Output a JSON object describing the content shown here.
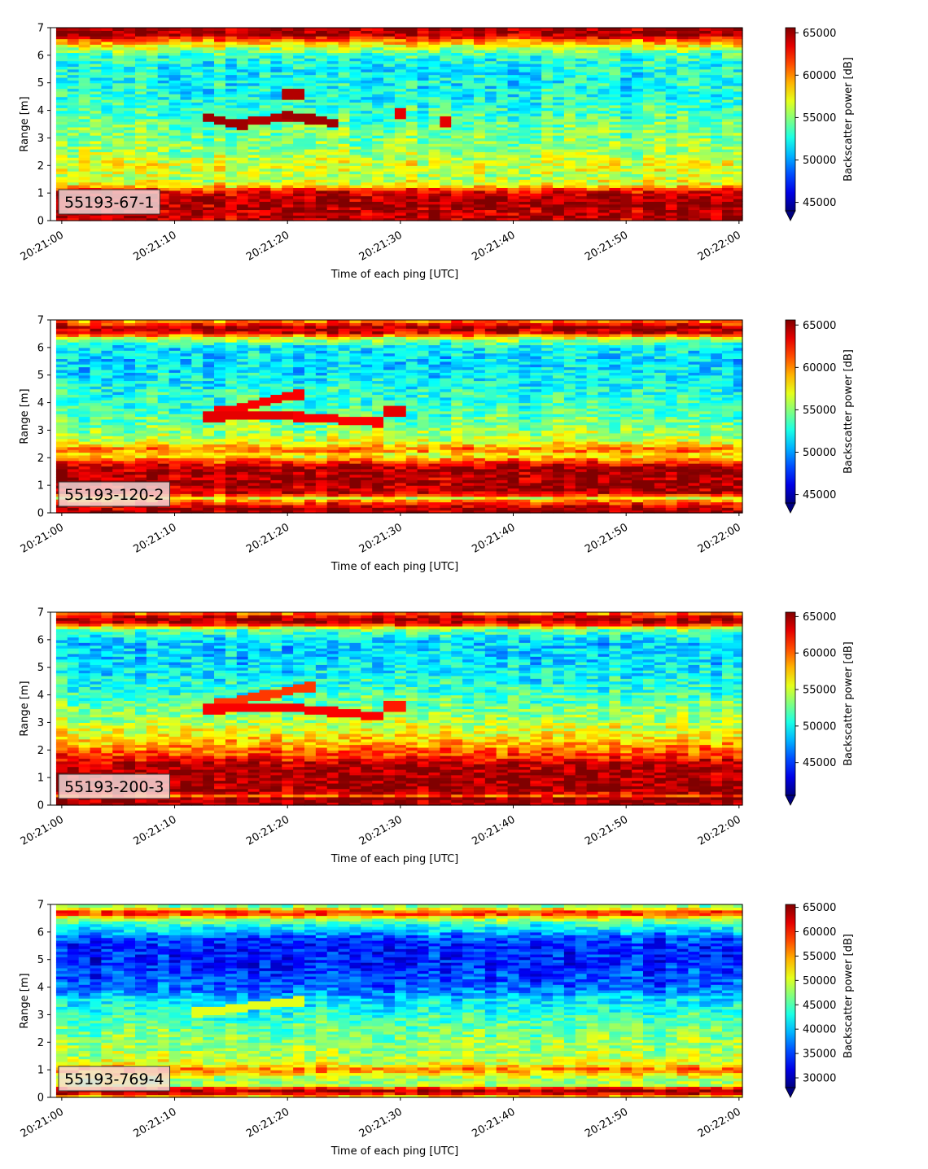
{
  "figure": {
    "colormap": "jet",
    "colorbar_extend": "min"
  },
  "chart_data": [
    {
      "type": "heatmap",
      "label": "55193-67-1",
      "xlabel": "Time of each ping [UTC]",
      "ylabel": "Range [m]",
      "colorbar_label": "Backscatter power [dB]",
      "x_ticks": [
        "20:21:00",
        "20:21:10",
        "20:21:20",
        "20:21:30",
        "20:21:40",
        "20:21:50",
        "20:22:00"
      ],
      "x_tick_seconds": [
        0,
        10,
        20,
        30,
        40,
        50,
        60
      ],
      "xlim_seconds": [
        -1,
        60.3
      ],
      "y_ticks": [
        "0",
        "1",
        "2",
        "3",
        "4",
        "5",
        "6",
        "7"
      ],
      "ylim": [
        0,
        7
      ],
      "clim": [
        44000,
        65600
      ],
      "cbar_ticks": [
        "45000",
        "50000",
        "55000",
        "60000",
        "65000"
      ],
      "cbar_tick_values": [
        45000,
        50000,
        55000,
        60000,
        65000
      ],
      "profile": {
        "depth": [
          0.0,
          0.15,
          0.3,
          0.6,
          0.9,
          1.1,
          1.3,
          1.6,
          2.0,
          2.3,
          2.6,
          3.0,
          3.5,
          4.0,
          4.5,
          5.0,
          5.5,
          6.0,
          6.3,
          6.6,
          6.75,
          7.0
        ],
        "level": [
          0.93,
          0.95,
          0.94,
          0.97,
          0.95,
          0.88,
          0.62,
          0.55,
          0.6,
          0.55,
          0.52,
          0.5,
          0.47,
          0.43,
          0.4,
          0.38,
          0.38,
          0.42,
          0.58,
          0.8,
          0.96,
          0.97
        ]
      },
      "noise": 0.1,
      "fish": [
        {
          "t0": 12.5,
          "t1": 16,
          "r0": 3.8,
          "r1": 3.5,
          "level": 0.97
        },
        {
          "t0": 16,
          "t1": 20,
          "r0": 3.55,
          "r1": 3.8,
          "level": 0.95
        },
        {
          "t0": 20,
          "t1": 24,
          "r0": 3.85,
          "r1": 3.55,
          "level": 0.97
        },
        {
          "t0": 19.5,
          "t1": 21.5,
          "r0": 4.6,
          "r1": 4.6,
          "level": 0.95
        },
        {
          "t0": 29.5,
          "t1": 30.5,
          "r0": 3.9,
          "r1": 3.9,
          "level": 0.9
        },
        {
          "t0": 33.5,
          "t1": 34.5,
          "r0": 3.6,
          "r1": 3.6,
          "level": 0.9
        }
      ]
    },
    {
      "type": "heatmap",
      "label": "55193-120-2",
      "xlabel": "Time of each ping [UTC]",
      "ylabel": "Range [m]",
      "colorbar_label": "Backscatter power [dB]",
      "x_ticks": [
        "20:21:00",
        "20:21:10",
        "20:21:20",
        "20:21:30",
        "20:21:40",
        "20:21:50",
        "20:22:00"
      ],
      "x_tick_seconds": [
        0,
        10,
        20,
        30,
        40,
        50,
        60
      ],
      "xlim_seconds": [
        -1,
        60.3
      ],
      "y_ticks": [
        "0",
        "1",
        "2",
        "3",
        "4",
        "5",
        "6",
        "7"
      ],
      "ylim": [
        0,
        7
      ],
      "clim": [
        44000,
        65600
      ],
      "cbar_ticks": [
        "45000",
        "50000",
        "55000",
        "60000",
        "65000"
      ],
      "cbar_tick_values": [
        45000,
        50000,
        55000,
        60000,
        65000
      ],
      "profile": {
        "depth": [
          0.0,
          0.2,
          0.4,
          0.55,
          0.7,
          1.0,
          1.3,
          1.6,
          1.9,
          2.1,
          2.3,
          2.6,
          3.0,
          3.5,
          4.0,
          4.5,
          5.0,
          5.5,
          6.0,
          6.3,
          6.55,
          6.75,
          7.0
        ],
        "level": [
          0.97,
          0.95,
          0.8,
          0.6,
          0.93,
          0.97,
          0.95,
          0.98,
          0.8,
          0.6,
          0.78,
          0.58,
          0.52,
          0.46,
          0.42,
          0.4,
          0.36,
          0.34,
          0.36,
          0.52,
          0.9,
          0.97,
          0.7
        ]
      },
      "noise": 0.1,
      "fish": [
        {
          "t0": 12.5,
          "t1": 20,
          "r0": 3.5,
          "r1": 3.55,
          "level": 0.9
        },
        {
          "t0": 14,
          "t1": 21,
          "r0": 3.7,
          "r1": 4.3,
          "level": 0.88
        },
        {
          "t0": 21,
          "t1": 28,
          "r0": 3.5,
          "r1": 3.3,
          "level": 0.88
        },
        {
          "t0": 29,
          "t1": 30.5,
          "r0": 3.7,
          "r1": 3.7,
          "level": 0.9
        }
      ]
    },
    {
      "type": "heatmap",
      "label": "55193-200-3",
      "xlabel": "Time of each ping [UTC]",
      "ylabel": "Range [m]",
      "colorbar_label": "Backscatter power [dB]",
      "x_ticks": [
        "20:21:00",
        "20:21:10",
        "20:21:20",
        "20:21:30",
        "20:21:40",
        "20:21:50",
        "20:22:00"
      ],
      "x_tick_seconds": [
        0,
        10,
        20,
        30,
        40,
        50,
        60
      ],
      "xlim_seconds": [
        -1,
        60.3
      ],
      "y_ticks": [
        "0",
        "1",
        "2",
        "3",
        "4",
        "5",
        "6",
        "7"
      ],
      "ylim": [
        0,
        7
      ],
      "clim": [
        40500,
        65600
      ],
      "cbar_ticks": [
        "45000",
        "50000",
        "55000",
        "60000",
        "65000"
      ],
      "cbar_tick_values": [
        45000,
        50000,
        55000,
        60000,
        65000
      ],
      "profile": {
        "depth": [
          0.0,
          0.25,
          0.35,
          0.5,
          0.8,
          1.2,
          1.5,
          1.7,
          2.0,
          2.3,
          2.6,
          3.0,
          3.5,
          4.0,
          4.5,
          5.0,
          5.5,
          6.0,
          6.4,
          6.6,
          6.8,
          7.0
        ],
        "level": [
          0.97,
          0.97,
          0.8,
          0.97,
          0.98,
          0.97,
          0.96,
          0.85,
          0.78,
          0.7,
          0.62,
          0.56,
          0.5,
          0.44,
          0.4,
          0.36,
          0.34,
          0.34,
          0.5,
          0.92,
          0.97,
          0.72
        ]
      },
      "noise": 0.1,
      "fish": [
        {
          "t0": 12.5,
          "t1": 20,
          "r0": 3.5,
          "r1": 3.55,
          "level": 0.88
        },
        {
          "t0": 14,
          "t1": 22,
          "r0": 3.7,
          "r1": 4.3,
          "level": 0.82
        },
        {
          "t0": 20,
          "t1": 28,
          "r0": 3.55,
          "r1": 3.25,
          "level": 0.88
        },
        {
          "t0": 28.5,
          "t1": 30,
          "r0": 3.6,
          "r1": 3.6,
          "level": 0.85
        }
      ]
    },
    {
      "type": "heatmap",
      "label": "55193-769-4",
      "xlabel": "Time of each ping [UTC]",
      "ylabel": "Range [m]",
      "colorbar_label": "Backscatter power [dB]",
      "x_ticks": [
        "20:21:00",
        "20:21:10",
        "20:21:20",
        "20:21:30",
        "20:21:40",
        "20:21:50",
        "20:22:00"
      ],
      "x_tick_seconds": [
        0,
        10,
        20,
        30,
        40,
        50,
        60
      ],
      "xlim_seconds": [
        -1,
        60.3
      ],
      "y_ticks": [
        "0",
        "1",
        "2",
        "3",
        "4",
        "5",
        "6",
        "7"
      ],
      "ylim": [
        0,
        7
      ],
      "clim": [
        28000,
        65600
      ],
      "cbar_ticks": [
        "30000",
        "35000",
        "40000",
        "45000",
        "50000",
        "55000",
        "60000",
        "65000"
      ],
      "cbar_tick_values": [
        30000,
        35000,
        40000,
        45000,
        50000,
        55000,
        60000,
        65000
      ],
      "profile": {
        "depth": [
          0.0,
          0.2,
          0.3,
          0.45,
          0.7,
          0.95,
          1.05,
          1.2,
          1.5,
          2.0,
          2.5,
          3.0,
          3.5,
          4.0,
          4.5,
          5.0,
          5.5,
          5.8,
          6.2,
          6.5,
          6.7,
          6.9,
          7.0
        ],
        "level": [
          0.6,
          0.97,
          0.97,
          0.55,
          0.52,
          0.72,
          0.75,
          0.6,
          0.55,
          0.52,
          0.48,
          0.42,
          0.35,
          0.22,
          0.18,
          0.15,
          0.15,
          0.2,
          0.38,
          0.55,
          0.9,
          0.55,
          0.45
        ]
      },
      "noise": 0.09,
      "fish": [
        {
          "t0": 12,
          "t1": 21,
          "r0": 3.1,
          "r1": 3.5,
          "level": 0.6
        }
      ]
    }
  ]
}
